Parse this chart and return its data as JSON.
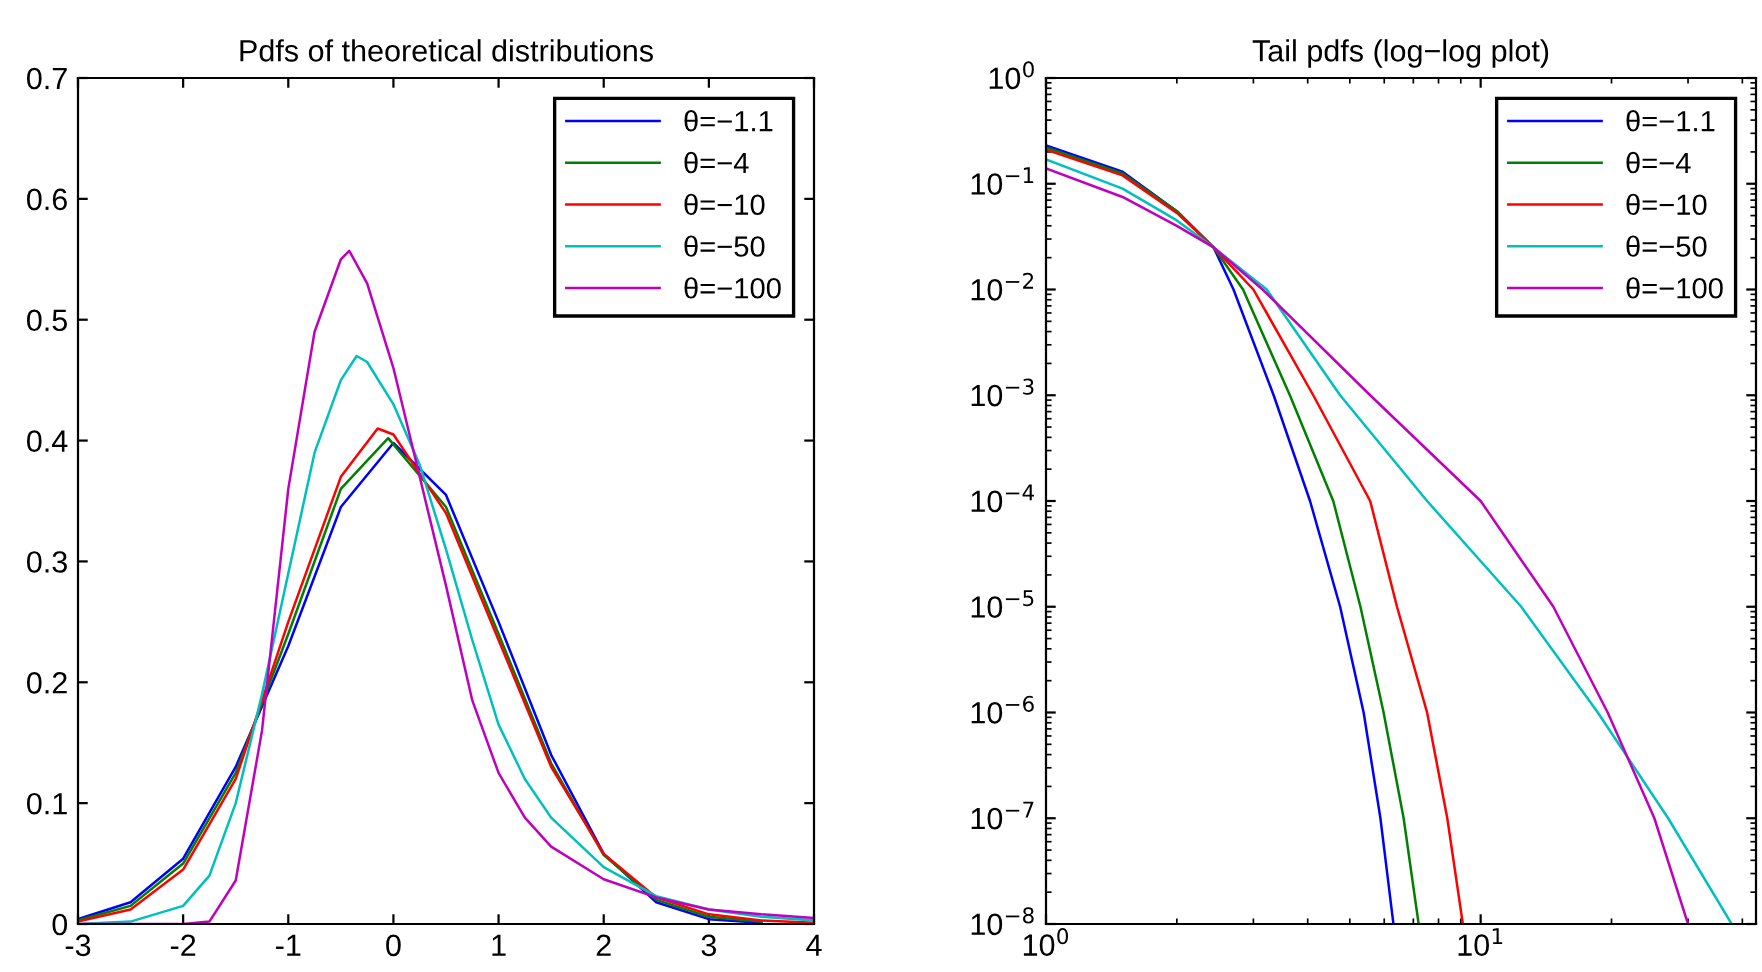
{
  "chart_data": [
    {
      "type": "line",
      "title": "Pdfs of theoretical distributions",
      "xlim": [
        -3,
        4
      ],
      "ylim": [
        0,
        0.7
      ],
      "xticks": [
        -3,
        -2,
        -1,
        0,
        1,
        2,
        3,
        4
      ],
      "yticks": [
        0,
        0.1,
        0.2,
        0.3,
        0.4,
        0.5,
        0.6,
        0.7
      ],
      "grid": false,
      "legend": "top right",
      "line_style": "solid",
      "marker": "none",
      "series": [
        {
          "name": "θ=−1.1",
          "color": "#0000ff",
          "x": [
            -3,
            -2.5,
            -2,
            -1.5,
            -1,
            -0.5,
            0,
            0.5,
            1,
            1.5,
            2,
            2.5,
            3,
            3.5
          ],
          "values": [
            0.004,
            0.018,
            0.054,
            0.13,
            0.23,
            0.345,
            0.398,
            0.355,
            0.25,
            0.14,
            0.058,
            0.018,
            0.004,
            0.001
          ]
        },
        {
          "name": "θ=−4",
          "color": "#008000",
          "x": [
            -3,
            -2.5,
            -2,
            -1.5,
            -1,
            -0.5,
            -0.05,
            0.5,
            1,
            1.5,
            2,
            2.5,
            3,
            3.5
          ],
          "values": [
            0.003,
            0.015,
            0.05,
            0.125,
            0.24,
            0.36,
            0.402,
            0.345,
            0.24,
            0.133,
            0.057,
            0.02,
            0.006,
            0.002
          ]
        },
        {
          "name": "θ=−10",
          "color": "#ff0000",
          "x": [
            -3,
            -2.5,
            -2,
            -1.5,
            -1,
            -0.5,
            -0.15,
            0,
            0.5,
            1,
            1.5,
            2,
            2.5,
            3,
            3.5,
            4
          ],
          "values": [
            0.002,
            0.012,
            0.045,
            0.12,
            0.25,
            0.37,
            0.41,
            0.405,
            0.34,
            0.235,
            0.13,
            0.058,
            0.022,
            0.008,
            0.003,
            0.001
          ]
        },
        {
          "name": "θ=−50",
          "color": "#00bfbf",
          "x": [
            -3,
            -2.5,
            -2,
            -1.75,
            -1.5,
            -1.25,
            -1,
            -0.75,
            -0.5,
            -0.35,
            -0.25,
            0,
            0.25,
            0.5,
            0.75,
            1,
            1.25,
            1.5,
            2,
            2.5,
            3,
            3.5,
            4
          ],
          "values": [
            0,
            0.002,
            0.015,
            0.04,
            0.1,
            0.19,
            0.29,
            0.39,
            0.45,
            0.47,
            0.465,
            0.43,
            0.38,
            0.31,
            0.235,
            0.165,
            0.12,
            0.088,
            0.047,
            0.023,
            0.012,
            0.006,
            0.003
          ]
        },
        {
          "name": "θ=−100",
          "color": "#bf00bf",
          "x": [
            -3,
            -2,
            -1.75,
            -1.5,
            -1.25,
            -1,
            -0.75,
            -0.5,
            -0.42,
            -0.25,
            0,
            0.25,
            0.5,
            0.75,
            1,
            1.25,
            1.5,
            2,
            2.5,
            3,
            3.5,
            4
          ],
          "values": [
            0,
            0,
            0.002,
            0.036,
            0.16,
            0.36,
            0.49,
            0.55,
            0.557,
            0.53,
            0.46,
            0.37,
            0.28,
            0.185,
            0.125,
            0.088,
            0.064,
            0.037,
            0.022,
            0.012,
            0.008,
            0.005
          ]
        }
      ]
    },
    {
      "type": "line",
      "title": "Tail pdfs (log−log plot)",
      "log": "xy",
      "xlim": [
        1,
        43
      ],
      "ylim": [
        1e-08,
        1
      ],
      "xticks": [
        {
          "value": 1,
          "label": "10$^{0}$"
        },
        {
          "value": 10,
          "label": "10$^{1}$"
        }
      ],
      "yticks": [
        {
          "value": 1e-08,
          "label": "10$^{−8}$"
        },
        {
          "value": 1e-07,
          "label": "10$^{−7}$"
        },
        {
          "value": 1e-06,
          "label": "10$^{−6}$"
        },
        {
          "value": 1e-05,
          "label": "10$^{−5}$"
        },
        {
          "value": 0.0001,
          "label": "10$^{−4}$"
        },
        {
          "value": 0.001,
          "label": "10$^{−3}$"
        },
        {
          "value": 0.01,
          "label": "10$^{−2}$"
        },
        {
          "value": 0.1,
          "label": "10$^{−1}$"
        },
        {
          "value": 1,
          "label": "10$^{0}$"
        }
      ],
      "grid": false,
      "legend": "top right",
      "line_style": "solid",
      "marker": "none",
      "series": [
        {
          "name": "θ=−1.1",
          "color": "#0000ff",
          "x": [
            1,
            1.5,
            2,
            2.43,
            2.7,
            3.34,
            4.05,
            4.75,
            5.38,
            5.88,
            6.3
          ],
          "values": [
            0.23,
            0.13,
            0.055,
            0.025,
            0.01,
            0.001,
            0.0001,
            1e-05,
            1e-06,
            1e-07,
            1e-08
          ]
        },
        {
          "name": "θ=−4",
          "color": "#008000",
          "x": [
            1,
            1.5,
            2,
            2.43,
            2.84,
            3.64,
            4.58,
            5.29,
            5.98,
            6.65,
            7.2
          ],
          "values": [
            0.22,
            0.125,
            0.055,
            0.025,
            0.01,
            0.001,
            0.0001,
            1e-05,
            1e-06,
            1e-07,
            1e-08
          ]
        },
        {
          "name": "θ=−10",
          "color": "#ff0000",
          "x": [
            1,
            1.5,
            2,
            2.43,
            3.0,
            4.12,
            5.57,
            6.42,
            7.53,
            8.38,
            9.1
          ],
          "values": [
            0.21,
            0.12,
            0.053,
            0.025,
            0.01,
            0.001,
            0.0001,
            1e-05,
            1e-06,
            1e-07,
            1e-08
          ]
        },
        {
          "name": "θ=−50",
          "color": "#00bfbf",
          "x": [
            1,
            1.5,
            2,
            2.43,
            3.22,
            4.75,
            7.53,
            12.4,
            18.6,
            27,
            37.8
          ],
          "values": [
            0.17,
            0.09,
            0.045,
            0.025,
            0.01,
            0.001,
            0.0001,
            1e-05,
            1e-06,
            1e-07,
            1e-08
          ]
        },
        {
          "name": "θ=−100",
          "color": "#bf00bf",
          "x": [
            1,
            1.5,
            2,
            2.43,
            3.15,
            5.57,
            10,
            14.7,
            19.6,
            25.1,
            30
          ],
          "values": [
            0.14,
            0.075,
            0.04,
            0.025,
            0.01,
            0.001,
            0.0001,
            1e-05,
            1e-06,
            1e-07,
            1e-08
          ]
        }
      ]
    }
  ]
}
